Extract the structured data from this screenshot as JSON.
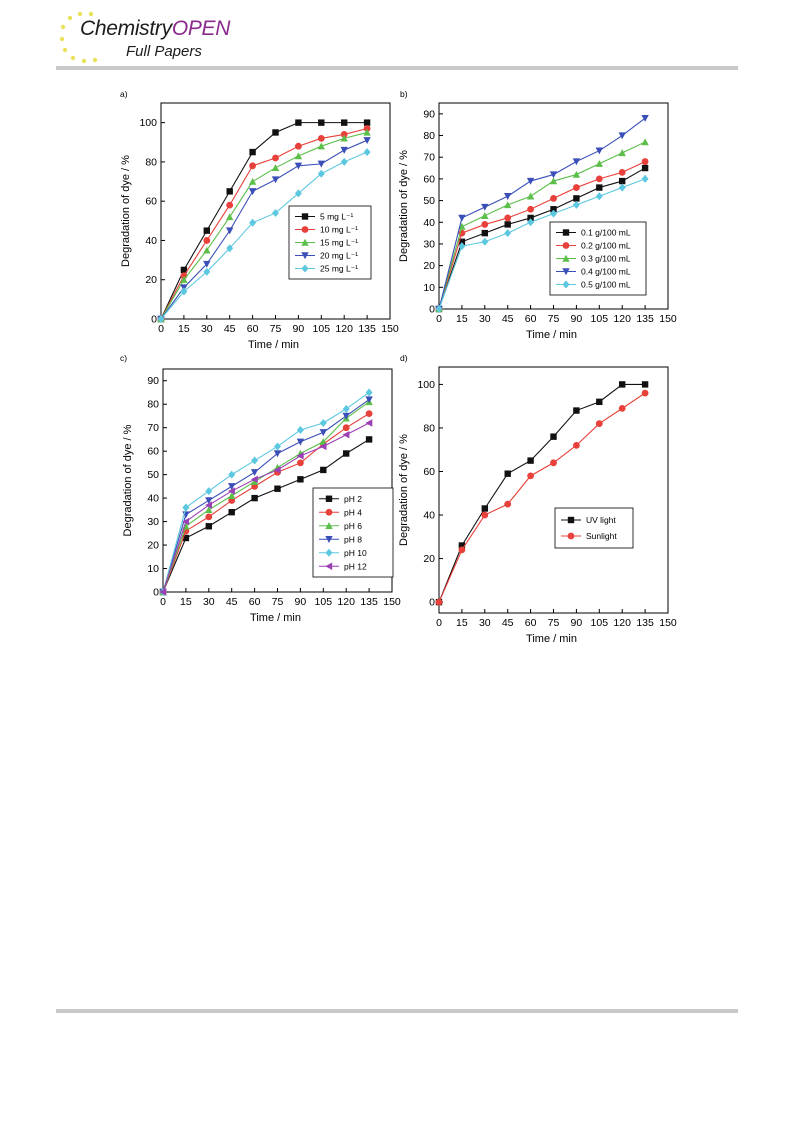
{
  "header": {
    "journal_part1": "Chemistry",
    "journal_part2": "OPEN",
    "section": "Full Papers",
    "brand_colors": {
      "dark": "#1c1c1c",
      "purple": "#8a2b8c",
      "star": "#e8e25a"
    }
  },
  "chart_data": [
    {
      "panel": "a)",
      "type": "line",
      "xlabel": "Time / min",
      "ylabel": "Degradation of dye / %",
      "xlim": [
        0,
        150
      ],
      "ylim": [
        0,
        110
      ],
      "xticks": [
        0,
        15,
        30,
        45,
        60,
        75,
        90,
        105,
        120,
        135,
        150
      ],
      "yticks": [
        0,
        20,
        40,
        60,
        80,
        100
      ],
      "legend_position": "lower-right",
      "x": [
        0,
        15,
        30,
        45,
        60,
        75,
        90,
        105,
        120,
        135
      ],
      "series": [
        {
          "name": "5 mg L⁻¹",
          "color": "#111111",
          "marker": "square",
          "values": [
            0,
            25,
            45,
            65,
            85,
            95,
            100,
            100,
            100,
            100
          ]
        },
        {
          "name": "10 mg L⁻¹",
          "color": "#e8403a",
          "marker": "circle",
          "values": [
            0,
            22,
            40,
            58,
            78,
            82,
            88,
            92,
            94,
            97
          ]
        },
        {
          "name": "15 mg L⁻¹",
          "color": "#5bbf4a",
          "marker": "triangle-up",
          "values": [
            0,
            20,
            35,
            52,
            70,
            77,
            83,
            88,
            92,
            95
          ]
        },
        {
          "name": "20 mg L⁻¹",
          "color": "#3b4fb8",
          "marker": "triangle-down",
          "values": [
            0,
            16,
            28,
            45,
            65,
            71,
            78,
            79,
            86,
            91
          ]
        },
        {
          "name": "25 mg L⁻¹",
          "color": "#5cc8e0",
          "marker": "diamond",
          "values": [
            0,
            14,
            24,
            36,
            49,
            54,
            64,
            74,
            80,
            85
          ]
        }
      ]
    },
    {
      "panel": "b)",
      "type": "line",
      "xlabel": "Time / min",
      "ylabel": "Degradation of dye / %",
      "xlim": [
        0,
        150
      ],
      "ylim": [
        0,
        95
      ],
      "xticks": [
        0,
        15,
        30,
        45,
        60,
        75,
        90,
        105,
        120,
        135,
        150
      ],
      "yticks": [
        0,
        10,
        20,
        30,
        40,
        50,
        60,
        70,
        80,
        90
      ],
      "legend_position": "lower-right",
      "x": [
        0,
        15,
        30,
        45,
        60,
        75,
        90,
        105,
        120,
        135
      ],
      "series": [
        {
          "name": "0.1 g/100 mL",
          "color": "#111111",
          "marker": "square",
          "values": [
            0,
            31,
            35,
            39,
            42,
            46,
            51,
            56,
            59,
            65
          ]
        },
        {
          "name": "0.2 g/100 mL",
          "color": "#e8403a",
          "marker": "circle",
          "values": [
            0,
            35,
            39,
            42,
            46,
            51,
            56,
            60,
            63,
            68
          ]
        },
        {
          "name": "0.3 g/100 mL",
          "color": "#5bbf4a",
          "marker": "triangle-up",
          "values": [
            0,
            38,
            43,
            48,
            52,
            59,
            62,
            67,
            72,
            77
          ]
        },
        {
          "name": "0.4 g/100 mL",
          "color": "#3b4fb8",
          "marker": "triangle-down",
          "values": [
            0,
            42,
            47,
            52,
            59,
            62,
            68,
            73,
            80,
            88
          ]
        },
        {
          "name": "0.5 g/100 mL",
          "color": "#5cc8e0",
          "marker": "diamond",
          "values": [
            0,
            29,
            31,
            35,
            40,
            44,
            48,
            52,
            56,
            60
          ]
        }
      ]
    },
    {
      "panel": "c)",
      "type": "line",
      "xlabel": "Time / min",
      "ylabel": "Degradation of dye / %",
      "xlim": [
        0,
        150
      ],
      "ylim": [
        0,
        95
      ],
      "xticks": [
        0,
        15,
        30,
        45,
        60,
        75,
        90,
        105,
        120,
        135,
        150
      ],
      "yticks": [
        0,
        10,
        20,
        30,
        40,
        50,
        60,
        70,
        80,
        90
      ],
      "legend_position": "lower-right",
      "x": [
        0,
        15,
        30,
        45,
        60,
        75,
        90,
        105,
        120,
        135
      ],
      "series": [
        {
          "name": "pH 2",
          "color": "#111111",
          "marker": "square",
          "values": [
            0,
            23,
            28,
            34,
            40,
            44,
            48,
            52,
            59,
            65
          ]
        },
        {
          "name": "pH 4",
          "color": "#e8403a",
          "marker": "circle",
          "values": [
            0,
            26,
            32,
            39,
            45,
            51,
            55,
            63,
            70,
            76
          ]
        },
        {
          "name": "pH 6",
          "color": "#5bbf4a",
          "marker": "triangle-up",
          "values": [
            0,
            28,
            35,
            41,
            47,
            53,
            59,
            64,
            74,
            81
          ]
        },
        {
          "name": "pH 8",
          "color": "#3b4fb8",
          "marker": "triangle-down",
          "values": [
            0,
            33,
            39,
            45,
            51,
            59,
            64,
            68,
            75,
            82
          ]
        },
        {
          "name": "pH 10",
          "color": "#5cc8e0",
          "marker": "diamond",
          "values": [
            0,
            36,
            43,
            50,
            56,
            62,
            69,
            72,
            78,
            85
          ]
        },
        {
          "name": "pH 12",
          "color": "#9b3fb5",
          "marker": "triangle-left",
          "values": [
            0,
            30,
            37,
            43,
            48,
            52,
            58,
            62,
            67,
            72
          ]
        }
      ]
    },
    {
      "panel": "d)",
      "type": "line",
      "xlabel": "Time / min",
      "ylabel": "Degradation of dye / %",
      "xlim": [
        0,
        150
      ],
      "ylim": [
        -5,
        108
      ],
      "xticks": [
        0,
        15,
        30,
        45,
        60,
        75,
        90,
        105,
        120,
        135,
        150
      ],
      "yticks": [
        0,
        20,
        40,
        60,
        80,
        100
      ],
      "legend_position": "lower-right",
      "x": [
        0,
        15,
        30,
        45,
        60,
        75,
        90,
        105,
        120,
        135
      ],
      "series": [
        {
          "name": "UV light",
          "color": "#111111",
          "marker": "square",
          "values": [
            0,
            26,
            43,
            59,
            65,
            76,
            88,
            92,
            100,
            100
          ]
        },
        {
          "name": "Sunlight",
          "color": "#e8403a",
          "marker": "circle",
          "values": [
            0,
            24,
            40,
            45,
            58,
            64,
            72,
            82,
            89,
            96
          ]
        }
      ]
    }
  ]
}
